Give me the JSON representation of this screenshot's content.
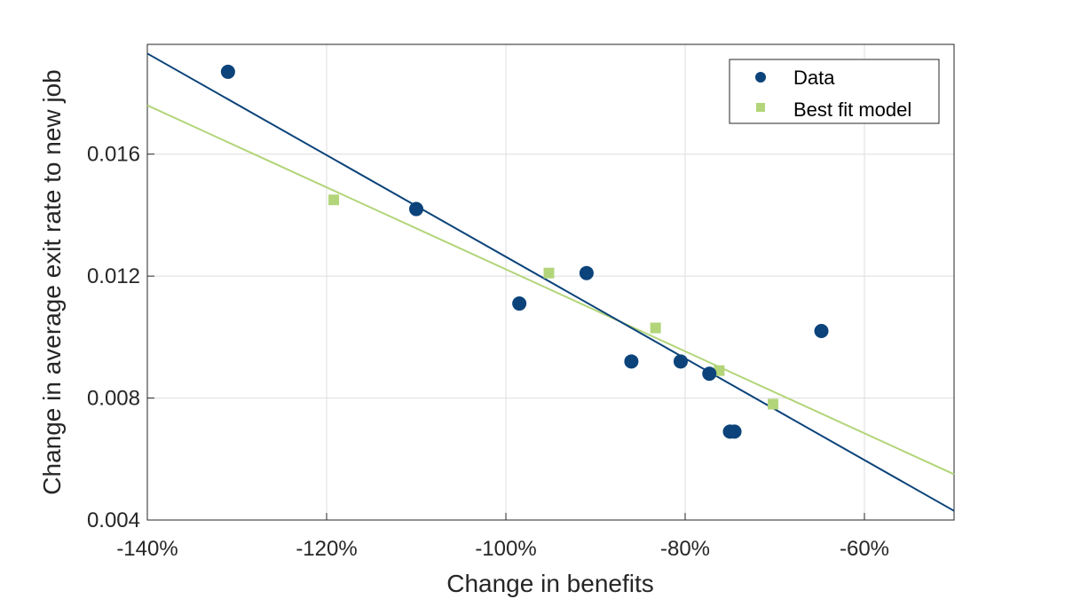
{
  "chart_data": {
    "type": "scatter",
    "title": "",
    "xlabel": "Change in benefits",
    "ylabel": "Change in average exit rate to new job",
    "xlim": [
      -140,
      -50
    ],
    "ylim": [
      0.004,
      0.0196
    ],
    "x_ticks": [
      {
        "value": -140,
        "label": "-140%"
      },
      {
        "value": -120,
        "label": "-120%"
      },
      {
        "value": -100,
        "label": "-100%"
      },
      {
        "value": -80,
        "label": "-80%"
      },
      {
        "value": -60,
        "label": "-60%"
      }
    ],
    "y_ticks": [
      {
        "value": 0.004,
        "label": "0.004"
      },
      {
        "value": 0.008,
        "label": "0.008"
      },
      {
        "value": 0.012,
        "label": "0.012"
      },
      {
        "value": 0.016,
        "label": "0.016"
      }
    ],
    "grid": true,
    "legend_position": "top-right",
    "series": [
      {
        "name": "Data",
        "marker": "circle",
        "color": "#0b437a",
        "points": [
          {
            "x": -131.0,
            "y": 0.0187
          },
          {
            "x": -110.0,
            "y": 0.0142
          },
          {
            "x": -98.5,
            "y": 0.0111
          },
          {
            "x": -91.0,
            "y": 0.0121
          },
          {
            "x": -86.0,
            "y": 0.0092
          },
          {
            "x": -80.5,
            "y": 0.0092
          },
          {
            "x": -77.3,
            "y": 0.0088
          },
          {
            "x": -75.0,
            "y": 0.0069
          },
          {
            "x": -74.5,
            "y": 0.0069
          },
          {
            "x": -64.8,
            "y": 0.0102
          }
        ],
        "fit_line": {
          "x": [
            -140,
            -50
          ],
          "y": [
            0.0193,
            0.0043
          ]
        }
      },
      {
        "name": "Best fit model",
        "marker": "square",
        "color": "#b3d57a",
        "points": [
          {
            "x": -119.2,
            "y": 0.0145
          },
          {
            "x": -95.2,
            "y": 0.0121
          },
          {
            "x": -83.3,
            "y": 0.0103
          },
          {
            "x": -76.2,
            "y": 0.0089
          },
          {
            "x": -70.2,
            "y": 0.0078
          }
        ],
        "fit_line": {
          "x": [
            -140,
            -50
          ],
          "y": [
            0.0176,
            0.0055
          ]
        }
      }
    ]
  }
}
